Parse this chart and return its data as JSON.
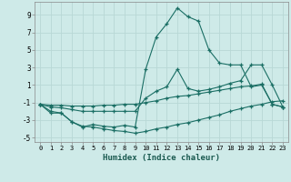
{
  "xlabel": "Humidex (Indice chaleur)",
  "bg_color": "#ceeae8",
  "grid_color": "#b8d8d5",
  "line_color": "#1a6e64",
  "xlim": [
    -0.5,
    23.5
  ],
  "ylim": [
    -5.5,
    10.5
  ],
  "yticks": [
    -5,
    -3,
    -1,
    1,
    3,
    5,
    7,
    9
  ],
  "xticks": [
    0,
    1,
    2,
    3,
    4,
    5,
    6,
    7,
    8,
    9,
    10,
    11,
    12,
    13,
    14,
    15,
    16,
    17,
    18,
    19,
    20,
    21,
    22,
    23
  ],
  "series": [
    {
      "x": [
        0,
        1,
        2,
        3,
        4,
        5,
        6,
        7,
        8,
        9,
        10,
        11,
        12,
        13,
        14,
        15,
        16,
        17,
        18,
        19,
        20,
        21,
        22,
        23
      ],
      "y": [
        -1.2,
        -2.0,
        -2.2,
        -3.2,
        -3.8,
        -3.5,
        -3.7,
        -3.8,
        -3.6,
        -3.8,
        2.8,
        6.5,
        8.0,
        9.8,
        8.8,
        8.3,
        5.0,
        3.5,
        3.3,
        3.3,
        0.8,
        1.0,
        -1.2,
        -1.5
      ]
    },
    {
      "x": [
        0,
        1,
        2,
        3,
        4,
        5,
        6,
        7,
        8,
        9,
        10,
        11,
        12,
        13,
        14,
        15,
        16,
        17,
        18,
        19,
        20,
        21,
        22,
        23
      ],
      "y": [
        -1.2,
        -1.5,
        -1.6,
        -1.8,
        -2.0,
        -2.0,
        -2.0,
        -2.0,
        -2.0,
        -2.0,
        -0.5,
        0.3,
        0.8,
        2.8,
        0.6,
        0.3,
        0.5,
        0.8,
        1.2,
        1.5,
        3.3,
        3.3,
        1.0,
        -1.5
      ]
    },
    {
      "x": [
        0,
        1,
        2,
        3,
        4,
        5,
        6,
        7,
        8,
        9,
        10,
        11,
        12,
        13,
        14,
        15,
        16,
        17,
        18,
        19,
        20,
        21,
        22,
        23
      ],
      "y": [
        -1.2,
        -1.3,
        -1.3,
        -1.4,
        -1.4,
        -1.4,
        -1.3,
        -1.3,
        -1.2,
        -1.2,
        -1.0,
        -0.8,
        -0.5,
        -0.3,
        -0.2,
        0.0,
        0.2,
        0.4,
        0.6,
        0.8,
        0.9,
        1.1,
        -1.2,
        -1.5
      ]
    },
    {
      "x": [
        0,
        1,
        2,
        3,
        4,
        5,
        6,
        7,
        8,
        9,
        10,
        11,
        12,
        13,
        14,
        15,
        16,
        17,
        18,
        19,
        20,
        21,
        22,
        23
      ],
      "y": [
        -1.2,
        -2.2,
        -2.2,
        -3.2,
        -3.7,
        -3.8,
        -4.0,
        -4.2,
        -4.3,
        -4.5,
        -4.3,
        -4.0,
        -3.8,
        -3.5,
        -3.3,
        -3.0,
        -2.7,
        -2.4,
        -2.0,
        -1.7,
        -1.4,
        -1.2,
        -0.9,
        -0.8
      ]
    }
  ]
}
